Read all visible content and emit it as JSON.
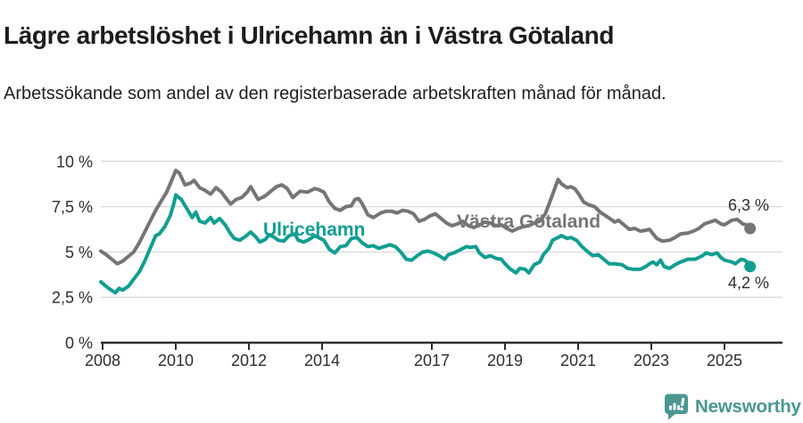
{
  "chart_data": {
    "type": "line",
    "title": "Lägre arbetslöshet i Ulricehamn än i Västra Götaland",
    "subtitle": "Arbetssökande som andel av den registerbaserade arbetskraften månad för månad.",
    "grid": true,
    "legend_position": "inline-labels",
    "x_axis": {
      "ticks": [
        2008,
        2010,
        2012,
        2014,
        2017,
        2019,
        2021,
        2023,
        2025
      ],
      "labels": [
        "2008",
        "2010",
        "2012",
        "2014",
        "2017",
        "2019",
        "2021",
        "2023",
        "2025"
      ],
      "range": [
        2007.9,
        2026.6
      ]
    },
    "y_axis": {
      "ticks": [
        0,
        2.5,
        5,
        7.5,
        10
      ],
      "labels": [
        "0 %",
        "2,5 %",
        "5 %",
        "7,5 %",
        "10 %"
      ],
      "range": [
        0,
        10
      ]
    },
    "style": {
      "grid_color": "#D9D9D9",
      "axis_color": "#2E2E2E",
      "axis_text_color": "#2E2E2E",
      "line_width": 4
    },
    "series": [
      {
        "id": "vastra-gotaland",
        "name": "Västra Götaland",
        "color": "#757575",
        "end_label": "6,3 %",
        "end_value": 6.3,
        "points": [
          [
            2007.95,
            5.05
          ],
          [
            2008.1,
            4.85
          ],
          [
            2008.25,
            4.6
          ],
          [
            2008.4,
            4.35
          ],
          [
            2008.55,
            4.5
          ],
          [
            2008.7,
            4.75
          ],
          [
            2008.85,
            5.0
          ],
          [
            2009.0,
            5.5
          ],
          [
            2009.15,
            6.1
          ],
          [
            2009.3,
            6.7
          ],
          [
            2009.45,
            7.3
          ],
          [
            2009.6,
            7.8
          ],
          [
            2009.75,
            8.3
          ],
          [
            2009.9,
            9.0
          ],
          [
            2010.0,
            9.5
          ],
          [
            2010.1,
            9.35
          ],
          [
            2010.25,
            8.7
          ],
          [
            2010.4,
            8.8
          ],
          [
            2010.5,
            8.95
          ],
          [
            2010.65,
            8.55
          ],
          [
            2010.8,
            8.4
          ],
          [
            2010.95,
            8.2
          ],
          [
            2011.1,
            8.55
          ],
          [
            2011.25,
            8.3
          ],
          [
            2011.4,
            7.9
          ],
          [
            2011.5,
            7.65
          ],
          [
            2011.65,
            7.9
          ],
          [
            2011.8,
            8.0
          ],
          [
            2011.95,
            8.3
          ],
          [
            2012.05,
            8.6
          ],
          [
            2012.25,
            7.9
          ],
          [
            2012.45,
            8.1
          ],
          [
            2012.6,
            8.35
          ],
          [
            2012.75,
            8.6
          ],
          [
            2012.9,
            8.7
          ],
          [
            2013.05,
            8.5
          ],
          [
            2013.2,
            8.0
          ],
          [
            2013.4,
            8.35
          ],
          [
            2013.6,
            8.3
          ],
          [
            2013.8,
            8.5
          ],
          [
            2013.9,
            8.45
          ],
          [
            2014.05,
            8.3
          ],
          [
            2014.2,
            7.75
          ],
          [
            2014.35,
            7.4
          ],
          [
            2014.5,
            7.3
          ],
          [
            2014.65,
            7.5
          ],
          [
            2014.8,
            7.55
          ],
          [
            2014.9,
            7.9
          ],
          [
            2015.0,
            7.95
          ],
          [
            2015.1,
            7.65
          ],
          [
            2015.25,
            7.05
          ],
          [
            2015.4,
            6.9
          ],
          [
            2015.6,
            7.15
          ],
          [
            2015.75,
            7.25
          ],
          [
            2015.9,
            7.25
          ],
          [
            2016.05,
            7.15
          ],
          [
            2016.2,
            7.3
          ],
          [
            2016.35,
            7.25
          ],
          [
            2016.5,
            7.1
          ],
          [
            2016.65,
            6.7
          ],
          [
            2016.8,
            6.8
          ],
          [
            2016.95,
            7.0
          ],
          [
            2017.1,
            7.1
          ],
          [
            2017.25,
            6.85
          ],
          [
            2017.4,
            6.6
          ],
          [
            2017.55,
            6.45
          ],
          [
            2017.7,
            6.55
          ],
          [
            2017.85,
            6.7
          ],
          [
            2018.0,
            6.45
          ],
          [
            2018.15,
            6.35
          ],
          [
            2018.3,
            6.5
          ],
          [
            2018.45,
            6.65
          ],
          [
            2018.6,
            6.6
          ],
          [
            2018.75,
            6.45
          ],
          [
            2018.9,
            6.5
          ],
          [
            2019.05,
            6.3
          ],
          [
            2019.2,
            6.15
          ],
          [
            2019.35,
            6.3
          ],
          [
            2019.5,
            6.4
          ],
          [
            2019.65,
            6.45
          ],
          [
            2019.8,
            6.6
          ],
          [
            2019.95,
            6.7
          ],
          [
            2020.1,
            7.1
          ],
          [
            2020.25,
            7.9
          ],
          [
            2020.45,
            9.0
          ],
          [
            2020.55,
            8.75
          ],
          [
            2020.7,
            8.55
          ],
          [
            2020.8,
            8.6
          ],
          [
            2020.9,
            8.5
          ],
          [
            2021.0,
            8.25
          ],
          [
            2021.15,
            7.75
          ],
          [
            2021.3,
            7.6
          ],
          [
            2021.45,
            7.5
          ],
          [
            2021.6,
            7.2
          ],
          [
            2021.75,
            7.0
          ],
          [
            2021.9,
            6.8
          ],
          [
            2022.0,
            6.65
          ],
          [
            2022.1,
            6.75
          ],
          [
            2022.25,
            6.5
          ],
          [
            2022.4,
            6.25
          ],
          [
            2022.55,
            6.3
          ],
          [
            2022.7,
            6.15
          ],
          [
            2022.85,
            6.2
          ],
          [
            2022.95,
            6.25
          ],
          [
            2023.05,
            6.0
          ],
          [
            2023.15,
            5.75
          ],
          [
            2023.3,
            5.6
          ],
          [
            2023.5,
            5.65
          ],
          [
            2023.65,
            5.8
          ],
          [
            2023.8,
            6.0
          ],
          [
            2024.0,
            6.05
          ],
          [
            2024.15,
            6.15
          ],
          [
            2024.3,
            6.3
          ],
          [
            2024.45,
            6.55
          ],
          [
            2024.6,
            6.65
          ],
          [
            2024.75,
            6.75
          ],
          [
            2024.9,
            6.55
          ],
          [
            2025.0,
            6.5
          ],
          [
            2025.2,
            6.75
          ],
          [
            2025.35,
            6.8
          ],
          [
            2025.5,
            6.55
          ],
          [
            2025.6,
            6.5
          ],
          [
            2025.7,
            6.3
          ]
        ]
      },
      {
        "id": "ulricehamn",
        "name": "Ulricehamn",
        "color": "#109E91",
        "end_label": "4,2 %",
        "end_value": 4.2,
        "points": [
          [
            2007.95,
            3.35
          ],
          [
            2008.1,
            3.1
          ],
          [
            2008.2,
            2.95
          ],
          [
            2008.35,
            2.75
          ],
          [
            2008.45,
            3.0
          ],
          [
            2008.55,
            2.9
          ],
          [
            2008.7,
            3.1
          ],
          [
            2008.85,
            3.5
          ],
          [
            2009.0,
            3.9
          ],
          [
            2009.15,
            4.5
          ],
          [
            2009.3,
            5.2
          ],
          [
            2009.45,
            5.9
          ],
          [
            2009.55,
            6.0
          ],
          [
            2009.7,
            6.4
          ],
          [
            2009.85,
            7.0
          ],
          [
            2009.95,
            7.7
          ],
          [
            2010.0,
            8.15
          ],
          [
            2010.15,
            7.9
          ],
          [
            2010.3,
            7.4
          ],
          [
            2010.45,
            6.9
          ],
          [
            2010.55,
            7.2
          ],
          [
            2010.65,
            6.7
          ],
          [
            2010.8,
            6.6
          ],
          [
            2010.95,
            6.9
          ],
          [
            2011.05,
            6.6
          ],
          [
            2011.2,
            6.85
          ],
          [
            2011.35,
            6.5
          ],
          [
            2011.5,
            6.0
          ],
          [
            2011.6,
            5.75
          ],
          [
            2011.75,
            5.65
          ],
          [
            2011.9,
            5.85
          ],
          [
            2012.05,
            6.1
          ],
          [
            2012.2,
            5.8
          ],
          [
            2012.3,
            5.55
          ],
          [
            2012.45,
            5.7
          ],
          [
            2012.55,
            5.95
          ],
          [
            2012.7,
            5.8
          ],
          [
            2012.8,
            5.65
          ],
          [
            2012.95,
            5.6
          ],
          [
            2013.1,
            5.9
          ],
          [
            2013.25,
            6.0
          ],
          [
            2013.35,
            5.65
          ],
          [
            2013.5,
            5.55
          ],
          [
            2013.65,
            5.7
          ],
          [
            2013.8,
            5.9
          ],
          [
            2013.95,
            5.75
          ],
          [
            2014.05,
            5.65
          ],
          [
            2014.2,
            5.15
          ],
          [
            2014.35,
            4.95
          ],
          [
            2014.5,
            5.3
          ],
          [
            2014.65,
            5.35
          ],
          [
            2014.8,
            5.75
          ],
          [
            2014.95,
            5.8
          ],
          [
            2015.1,
            5.5
          ],
          [
            2015.25,
            5.3
          ],
          [
            2015.4,
            5.35
          ],
          [
            2015.55,
            5.2
          ],
          [
            2015.7,
            5.3
          ],
          [
            2015.85,
            5.4
          ],
          [
            2016.0,
            5.3
          ],
          [
            2016.15,
            5.0
          ],
          [
            2016.3,
            4.6
          ],
          [
            2016.45,
            4.55
          ],
          [
            2016.6,
            4.8
          ],
          [
            2016.75,
            5.0
          ],
          [
            2016.9,
            5.05
          ],
          [
            2017.05,
            4.95
          ],
          [
            2017.2,
            4.8
          ],
          [
            2017.35,
            4.6
          ],
          [
            2017.45,
            4.85
          ],
          [
            2017.6,
            4.95
          ],
          [
            2017.8,
            5.15
          ],
          [
            2017.95,
            5.3
          ],
          [
            2018.05,
            5.25
          ],
          [
            2018.2,
            5.3
          ],
          [
            2018.3,
            4.95
          ],
          [
            2018.45,
            4.7
          ],
          [
            2018.6,
            4.8
          ],
          [
            2018.75,
            4.65
          ],
          [
            2018.9,
            4.6
          ],
          [
            2019.0,
            4.35
          ],
          [
            2019.15,
            4.05
          ],
          [
            2019.3,
            3.85
          ],
          [
            2019.4,
            4.1
          ],
          [
            2019.55,
            4.05
          ],
          [
            2019.65,
            3.85
          ],
          [
            2019.8,
            4.3
          ],
          [
            2019.95,
            4.45
          ],
          [
            2020.05,
            4.85
          ],
          [
            2020.2,
            5.2
          ],
          [
            2020.3,
            5.65
          ],
          [
            2020.45,
            5.8
          ],
          [
            2020.55,
            5.9
          ],
          [
            2020.7,
            5.75
          ],
          [
            2020.8,
            5.8
          ],
          [
            2020.95,
            5.65
          ],
          [
            2021.0,
            5.55
          ],
          [
            2021.1,
            5.3
          ],
          [
            2021.3,
            4.95
          ],
          [
            2021.4,
            4.8
          ],
          [
            2021.55,
            4.85
          ],
          [
            2021.7,
            4.6
          ],
          [
            2021.85,
            4.35
          ],
          [
            2022.0,
            4.35
          ],
          [
            2022.2,
            4.3
          ],
          [
            2022.35,
            4.1
          ],
          [
            2022.5,
            4.05
          ],
          [
            2022.7,
            4.05
          ],
          [
            2022.85,
            4.2
          ],
          [
            2022.95,
            4.35
          ],
          [
            2023.05,
            4.45
          ],
          [
            2023.15,
            4.3
          ],
          [
            2023.25,
            4.55
          ],
          [
            2023.35,
            4.2
          ],
          [
            2023.5,
            4.1
          ],
          [
            2023.65,
            4.3
          ],
          [
            2023.8,
            4.45
          ],
          [
            2024.0,
            4.6
          ],
          [
            2024.2,
            4.6
          ],
          [
            2024.4,
            4.8
          ],
          [
            2024.5,
            4.95
          ],
          [
            2024.65,
            4.85
          ],
          [
            2024.8,
            4.95
          ],
          [
            2024.9,
            4.7
          ],
          [
            2025.0,
            4.55
          ],
          [
            2025.2,
            4.45
          ],
          [
            2025.3,
            4.35
          ],
          [
            2025.45,
            4.6
          ],
          [
            2025.55,
            4.55
          ],
          [
            2025.65,
            4.4
          ],
          [
            2025.7,
            4.2
          ]
        ]
      }
    ]
  },
  "footer": {
    "brand": "Newsworthy",
    "brand_color": "#4A9790"
  }
}
